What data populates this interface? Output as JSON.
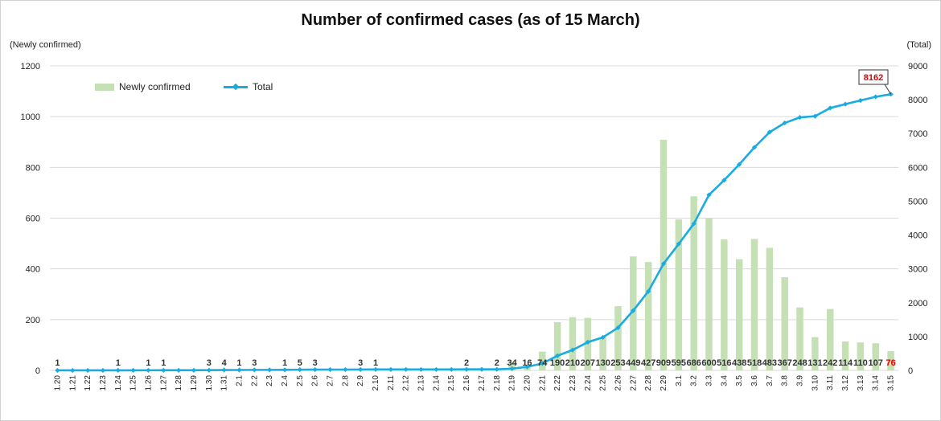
{
  "chart_data": {
    "type": "bar",
    "title": "Number of confirmed cases (as of 15 March)",
    "ylabel": "(Newly confirmed)",
    "y2label": "(Total)",
    "ylim": [
      0,
      1200
    ],
    "y2lim": [
      0,
      9000
    ],
    "yticks": [
      "0",
      "200",
      "400",
      "600",
      "800",
      "1000",
      "1200"
    ],
    "y2ticks": [
      "0",
      "1000",
      "2000",
      "3000",
      "4000",
      "5000",
      "6000",
      "7000",
      "8000",
      "9000"
    ],
    "legend": {
      "bar": "Newly confirmed",
      "line": "Total"
    },
    "categories": [
      "1.20",
      "1.21",
      "1.22",
      "1.23",
      "1.24",
      "1.25",
      "1.26",
      "1.27",
      "1.28",
      "1.29",
      "1.30",
      "1.31",
      "2.1",
      "2.2",
      "2.3",
      "2.4",
      "2.5",
      "2.6",
      "2.7",
      "2.8",
      "2.9",
      "2.10",
      "2.11",
      "2.12",
      "2.13",
      "2.14",
      "2.15",
      "2.16",
      "2.17",
      "2.18",
      "2.19",
      "2.20",
      "2.21",
      "2.22",
      "2.23",
      "2.24",
      "2.25",
      "2.26",
      "2.27",
      "2.28",
      "2.29",
      "3.1",
      "3.2",
      "3.3",
      "3.4",
      "3.5",
      "3.6",
      "3.7",
      "3.8",
      "3.9",
      "3.10",
      "3.11",
      "3.12",
      "3.13",
      "3.14",
      "3.15"
    ],
    "series": [
      {
        "name": "Newly confirmed",
        "type": "bar",
        "axis": "left",
        "values": [
          1,
          0,
          0,
          0,
          1,
          0,
          1,
          1,
          0,
          0,
          3,
          4,
          1,
          3,
          0,
          1,
          5,
          3,
          0,
          0,
          3,
          1,
          0,
          0,
          0,
          0,
          0,
          2,
          0,
          2,
          34,
          16,
          74,
          190,
          210,
          207,
          130,
          253,
          449,
          427,
          909,
          595,
          686,
          600,
          516,
          438,
          518,
          483,
          367,
          248,
          131,
          242,
          114,
          110,
          107,
          76
        ],
        "labels": [
          "1",
          "",
          "",
          "",
          "1",
          "",
          "1",
          "1",
          "",
          "",
          "3",
          "4",
          "1",
          "3",
          "",
          "1",
          "5",
          "3",
          "",
          "",
          "3",
          "1",
          "",
          "",
          "",
          "",
          "",
          "2",
          "",
          "2",
          "34",
          "16",
          "74",
          "190",
          "210",
          "207",
          "130",
          "253",
          "449",
          "427",
          "909",
          "595",
          "686",
          "600",
          "516",
          "438",
          "518",
          "483",
          "367",
          "248",
          "131",
          "242",
          "114",
          "110",
          "107",
          "76"
        ]
      },
      {
        "name": "Total",
        "type": "line",
        "axis": "right",
        "values": [
          1,
          1,
          1,
          1,
          2,
          2,
          3,
          4,
          4,
          4,
          7,
          11,
          12,
          15,
          15,
          16,
          21,
          24,
          24,
          24,
          27,
          28,
          28,
          28,
          28,
          28,
          28,
          30,
          30,
          31,
          51,
          104,
          204,
          433,
          602,
          833,
          977,
          1261,
          1766,
          2337,
          3150,
          3736,
          4335,
          5186,
          5621,
          6088,
          6593,
          7041,
          7313,
          7478,
          7513,
          7755,
          7869,
          7979,
          8086,
          8162
        ]
      }
    ],
    "annotations": {
      "total_callout": "8162",
      "last_bar_label_color": "#e00000"
    }
  },
  "colors": {
    "bar": "#c5e0b4",
    "line": "#1aace0",
    "highlight": "#e00000",
    "grid": "#d9d9d9"
  }
}
